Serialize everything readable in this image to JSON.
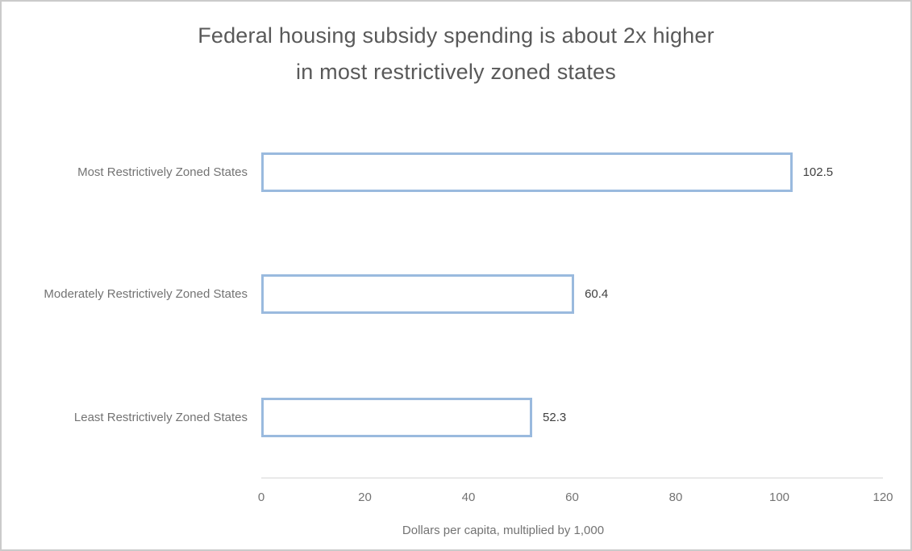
{
  "chart_data": {
    "type": "bar",
    "orientation": "horizontal",
    "title_lines": [
      "Federal housing subsidy spending is about 2x higher",
      "in most restrictively zoned states"
    ],
    "categories": [
      "Most Restrictively Zoned States",
      "Moderately Restrictively Zoned States",
      "Least Restrictively Zoned States"
    ],
    "values": [
      102.5,
      60.4,
      52.3
    ],
    "value_labels": [
      "102.5",
      "60.4",
      "52.3"
    ],
    "xlabel": "Dollars per capita, multiplied by 1,000",
    "ylabel": "",
    "xlim": [
      0,
      120
    ],
    "xticks": [
      0,
      20,
      40,
      60,
      80,
      100,
      120
    ],
    "grid": false,
    "legend": "none",
    "colors": {
      "bar_fill": "#ffffff",
      "bar_border": "#9abade",
      "axis_line": "#d6d6d6",
      "title_text": "#595959",
      "label_text": "#737373",
      "value_text": "#404040",
      "canvas_border": "#cbcbcb"
    }
  }
}
